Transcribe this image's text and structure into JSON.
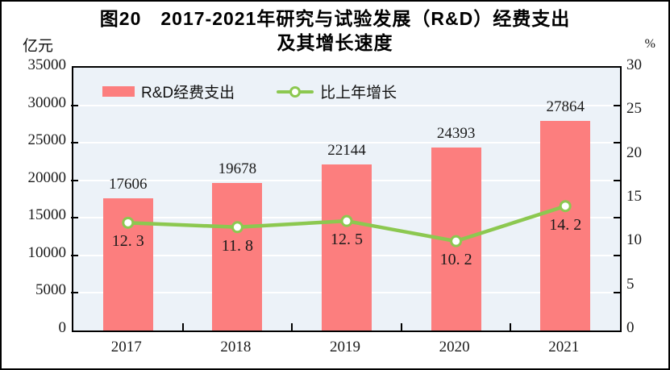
{
  "page": {
    "title_line1": "图20　2017-2021年研究与试验发展（R&D）经费支出",
    "title_line2": "及其增长速度",
    "left_axis_unit": "亿元",
    "right_axis_unit": "%"
  },
  "legend": {
    "bar_label": "R&D经费支出",
    "line_label": "比上年增长"
  },
  "colors": {
    "bar": "#FC7E7E",
    "line": "#8CC850",
    "marker_fill": "#FFFFFF",
    "plot_background": "#ECF2F8",
    "gridline": "#FFFFFF",
    "axis": "#000000",
    "text": "#1A1A1A"
  },
  "chart_data": {
    "type": "bar",
    "subtype": "combo-bar-line",
    "title": "图20 2017-2021年研究与试验发展（R&D）经费支出及其增长速度",
    "categories": [
      "2017",
      "2018",
      "2019",
      "2020",
      "2021"
    ],
    "series": [
      {
        "name": "R&D经费支出",
        "type": "bar",
        "axis": "left",
        "color": "#FC7E7E",
        "values": [
          17606,
          19678,
          22144,
          24393,
          27864
        ],
        "data_labels": [
          "17606",
          "19678",
          "22144",
          "24393",
          "27864"
        ]
      },
      {
        "name": "比上年增长",
        "type": "line",
        "axis": "right",
        "color": "#8CC850",
        "marker": "circle-white-fill-green-ring",
        "values": [
          12.3,
          11.8,
          12.5,
          10.2,
          14.2
        ],
        "data_labels": [
          "12. 3",
          "11. 8",
          "12. 5",
          "10. 2",
          "14. 2"
        ]
      }
    ],
    "left_axis": {
      "label": "亿元",
      "min": 0,
      "max": 35000,
      "step": 5000,
      "ticks": [
        0,
        5000,
        10000,
        15000,
        20000,
        25000,
        30000,
        35000
      ]
    },
    "right_axis": {
      "label": "%",
      "min": 0,
      "max": 30,
      "step": 5,
      "ticks": [
        0,
        5,
        10,
        15,
        20,
        25,
        30
      ]
    },
    "grid": "horizontal",
    "legend_position": "top-left-inside"
  }
}
